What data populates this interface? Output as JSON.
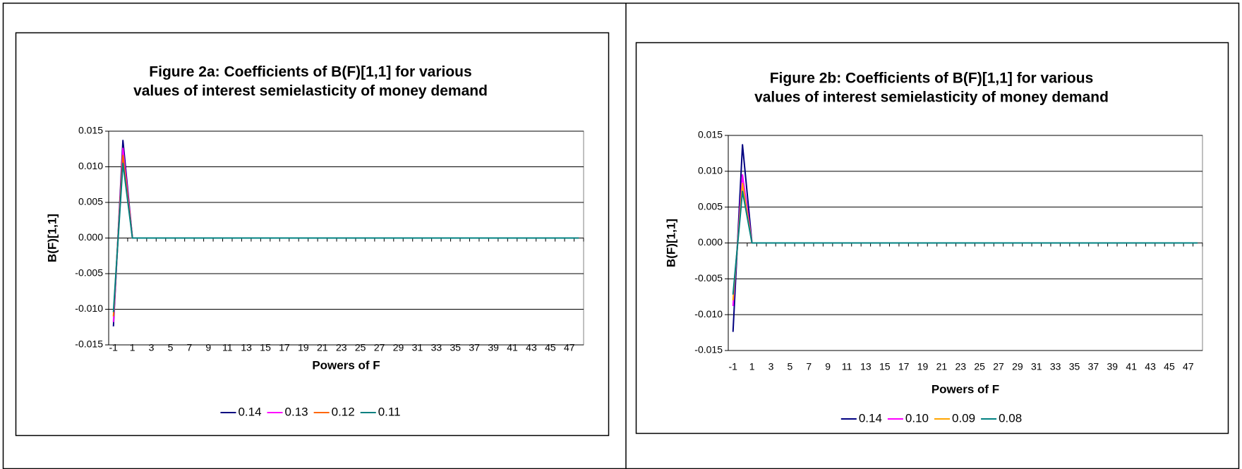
{
  "chart_data": [
    {
      "type": "line",
      "title": [
        "Figure 2a: Coefficients of B(F)[1,1] for various",
        "values of interest semielasticity of money demand"
      ],
      "x_label": "Powers of F",
      "y_label": "B(F)[1,1]",
      "categories": [
        "-1",
        null,
        "1",
        null,
        "3",
        null,
        "5",
        null,
        "7",
        null,
        "9",
        null,
        "11",
        null,
        "13",
        null,
        "15",
        null,
        "17",
        null,
        "19",
        null,
        "21",
        null,
        "23",
        null,
        "25",
        null,
        "27",
        null,
        "29",
        null,
        "31",
        null,
        "33",
        null,
        "35",
        null,
        "37",
        null,
        "39",
        null,
        "41",
        null,
        "43",
        null,
        "45",
        null,
        "47",
        null
      ],
      "ylim": [
        -0.015,
        0.015
      ],
      "yticks": [
        -0.015,
        {
          "value": -0.01,
          "label": "-0.010"
        },
        -0.005,
        {
          "value": 0,
          "label": "0.000"
        },
        0.005,
        {
          "value": 0.01,
          "label": "0.010"
        },
        0.015
      ],
      "grid": true,
      "legend": "bottom",
      "series": [
        {
          "name": "0.14",
          "color": "#000080",
          "values": [
            -0.0124,
            0.0137,
            0,
            0,
            0,
            0,
            0,
            0,
            0,
            0,
            0,
            0,
            0,
            0,
            0,
            0,
            0,
            0,
            0,
            0,
            0,
            0,
            0,
            0,
            0,
            0,
            0,
            0,
            0,
            0,
            0,
            0,
            0,
            0,
            0,
            0,
            0,
            0,
            0,
            0,
            0,
            0,
            0,
            0,
            0,
            0,
            0,
            0,
            0,
            0
          ]
        },
        {
          "name": "0.13",
          "color": "#ff00ff",
          "values": [
            -0.0118,
            0.0126,
            0,
            0,
            0,
            0,
            0,
            0,
            0,
            0,
            0,
            0,
            0,
            0,
            0,
            0,
            0,
            0,
            0,
            0,
            0,
            0,
            0,
            0,
            0,
            0,
            0,
            0,
            0,
            0,
            0,
            0,
            0,
            0,
            0,
            0,
            0,
            0,
            0,
            0,
            0,
            0,
            0,
            0,
            0,
            0,
            0,
            0,
            0,
            0
          ]
        },
        {
          "name": "0.12",
          "color": "#ff6600",
          "values": [
            -0.011,
            0.0116,
            0,
            0,
            0,
            0,
            0,
            0,
            0,
            0,
            0,
            0,
            0,
            0,
            0,
            0,
            0,
            0,
            0,
            0,
            0,
            0,
            0,
            0,
            0,
            0,
            0,
            0,
            0,
            0,
            0,
            0,
            0,
            0,
            0,
            0,
            0,
            0,
            0,
            0,
            0,
            0,
            0,
            0,
            0,
            0,
            0,
            0,
            0,
            0
          ]
        },
        {
          "name": "0.11",
          "color": "#008080",
          "values": [
            -0.0104,
            0.0105,
            0,
            0,
            0,
            0,
            0,
            0,
            0,
            0,
            0,
            0,
            0,
            0,
            0,
            0,
            0,
            0,
            0,
            0,
            0,
            0,
            0,
            0,
            0,
            0,
            0,
            0,
            0,
            0,
            0,
            0,
            0,
            0,
            0,
            0,
            0,
            0,
            0,
            0,
            0,
            0,
            0,
            0,
            0,
            0,
            0,
            0,
            0,
            0
          ]
        }
      ]
    },
    {
      "type": "line",
      "title": [
        "Figure 2b: Coefficients of B(F)[1,1] for various",
        "values of interest semielasticity of money demand"
      ],
      "x_label": "Powers of F",
      "y_label": "B(F)[1,1]",
      "categories": [
        "-1",
        null,
        "1",
        null,
        "3",
        null,
        "5",
        null,
        "7",
        null,
        "9",
        null,
        "11",
        null,
        "13",
        null,
        "15",
        null,
        "17",
        null,
        "19",
        null,
        "21",
        null,
        "23",
        null,
        "25",
        null,
        "27",
        null,
        "29",
        null,
        "31",
        null,
        "33",
        null,
        "35",
        null,
        "37",
        null,
        "39",
        null,
        "41",
        null,
        "43",
        null,
        "45",
        null,
        "47",
        null
      ],
      "ylim": [
        -0.015,
        0.015
      ],
      "yticks": [
        -0.015,
        {
          "value": -0.01,
          "label": "-0.010"
        },
        -0.005,
        {
          "value": 0,
          "label": "0.000"
        },
        0.005,
        {
          "value": 0.01,
          "label": "0.010"
        },
        0.015
      ],
      "grid": true,
      "legend": "bottom",
      "series": [
        {
          "name": "0.14",
          "color": "#000080",
          "values": [
            -0.0124,
            0.0137,
            0,
            0,
            0,
            0,
            0,
            0,
            0,
            0,
            0,
            0,
            0,
            0,
            0,
            0,
            0,
            0,
            0,
            0,
            0,
            0,
            0,
            0,
            0,
            0,
            0,
            0,
            0,
            0,
            0,
            0,
            0,
            0,
            0,
            0,
            0,
            0,
            0,
            0,
            0,
            0,
            0,
            0,
            0,
            0,
            0,
            0,
            0,
            0
          ]
        },
        {
          "name": "0.10",
          "color": "#ff00ff",
          "values": [
            -0.0088,
            0.0095,
            0,
            0,
            0,
            0,
            0,
            0,
            0,
            0,
            0,
            0,
            0,
            0,
            0,
            0,
            0,
            0,
            0,
            0,
            0,
            0,
            0,
            0,
            0,
            0,
            0,
            0,
            0,
            0,
            0,
            0,
            0,
            0,
            0,
            0,
            0,
            0,
            0,
            0,
            0,
            0,
            0,
            0,
            0,
            0,
            0,
            0,
            0,
            0
          ]
        },
        {
          "name": "0.09",
          "color": "#ffa500",
          "values": [
            -0.008,
            0.0083,
            0,
            0,
            0,
            0,
            0,
            0,
            0,
            0,
            0,
            0,
            0,
            0,
            0,
            0,
            0,
            0,
            0,
            0,
            0,
            0,
            0,
            0,
            0,
            0,
            0,
            0,
            0,
            0,
            0,
            0,
            0,
            0,
            0,
            0,
            0,
            0,
            0,
            0,
            0,
            0,
            0,
            0,
            0,
            0,
            0,
            0,
            0,
            0
          ]
        },
        {
          "name": "0.08",
          "color": "#008080",
          "values": [
            -0.0072,
            0.0072,
            0,
            0,
            0,
            0,
            0,
            0,
            0,
            0,
            0,
            0,
            0,
            0,
            0,
            0,
            0,
            0,
            0,
            0,
            0,
            0,
            0,
            0,
            0,
            0,
            0,
            0,
            0,
            0,
            0,
            0,
            0,
            0,
            0,
            0,
            0,
            0,
            0,
            0,
            0,
            0,
            0,
            0,
            0,
            0,
            0,
            0,
            0,
            0
          ]
        }
      ]
    }
  ]
}
